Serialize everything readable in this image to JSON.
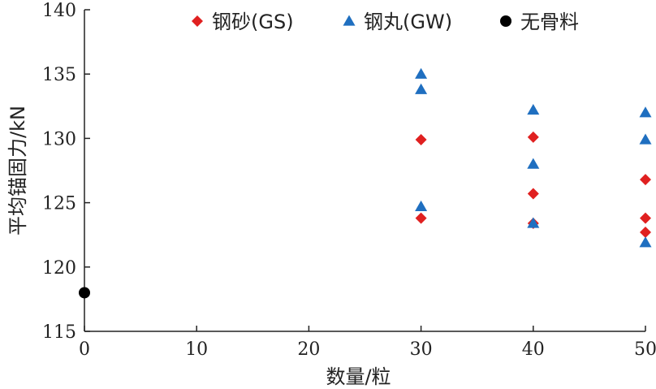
{
  "chart_data": {
    "type": "scatter",
    "xlabel": "数量/粒",
    "ylabel": "平均锚固力/kN",
    "xlim": [
      0,
      50
    ],
    "ylim": [
      115,
      140
    ],
    "x_ticks": [
      "0",
      "10",
      "20",
      "30",
      "40",
      "50"
    ],
    "y_ticks": [
      "115",
      "120",
      "125",
      "130",
      "135",
      "140"
    ],
    "grid": false,
    "legend_position": "top",
    "series": [
      {
        "name": "钢砂(GS)",
        "marker": "diamond",
        "color": "#e02020",
        "points": [
          {
            "x": 30,
            "y": 129.9
          },
          {
            "x": 30,
            "y": 123.8
          },
          {
            "x": 40,
            "y": 130.1
          },
          {
            "x": 40,
            "y": 125.7
          },
          {
            "x": 40,
            "y": 123.4
          },
          {
            "x": 50,
            "y": 126.8
          },
          {
            "x": 50,
            "y": 123.8
          },
          {
            "x": 50,
            "y": 122.7
          }
        ]
      },
      {
        "name": "钢丸(GW)",
        "marker": "triangle",
        "color": "#1f6fc0",
        "points": [
          {
            "x": 30,
            "y": 135.0
          },
          {
            "x": 30,
            "y": 133.8
          },
          {
            "x": 30,
            "y": 124.7
          },
          {
            "x": 40,
            "y": 132.2
          },
          {
            "x": 40,
            "y": 128.0
          },
          {
            "x": 40,
            "y": 123.4
          },
          {
            "x": 50,
            "y": 132.0
          },
          {
            "x": 50,
            "y": 129.9
          },
          {
            "x": 50,
            "y": 121.9
          }
        ]
      },
      {
        "name": "无骨料",
        "marker": "circle",
        "color": "#000000",
        "points": [
          {
            "x": 0,
            "y": 118.0
          }
        ]
      }
    ]
  }
}
